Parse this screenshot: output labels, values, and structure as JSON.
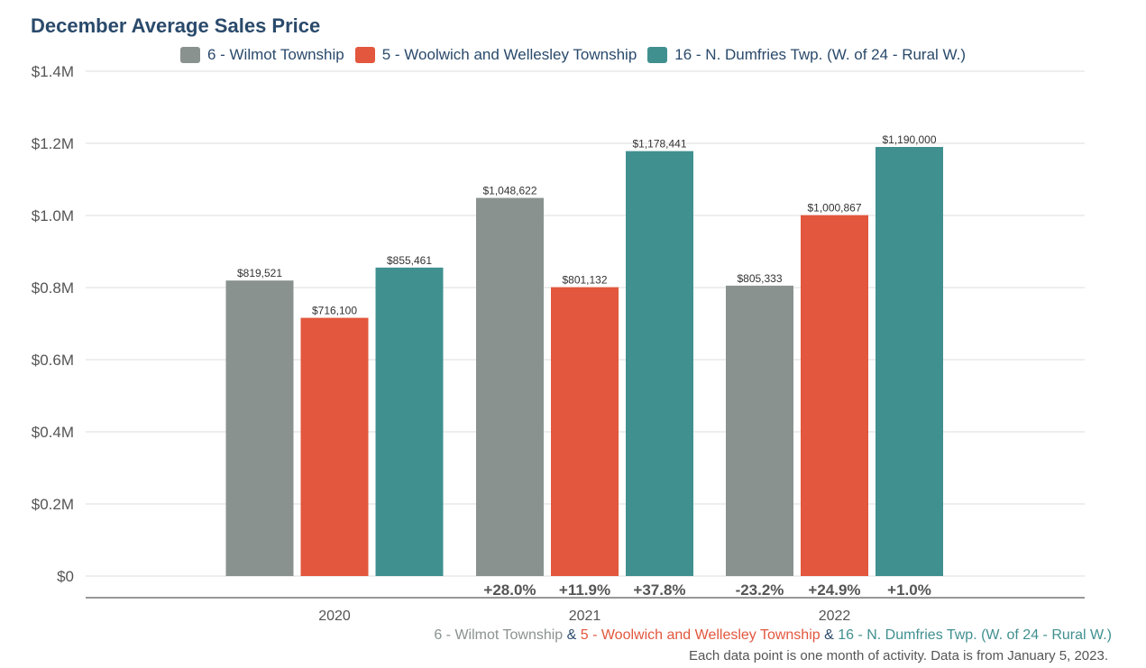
{
  "colors": {
    "series_1": "#8a9290",
    "series_2": "#e2573d",
    "series_3": "#419090",
    "title": "#2a4a6b",
    "connector": "#2a4a6b"
  },
  "chart_data": {
    "type": "bar",
    "title": "December Average Sales Price",
    "categories": [
      "2020",
      "2021",
      "2022"
    ],
    "series": [
      {
        "name": "6 - Wilmot Township",
        "values": [
          819521,
          1048622,
          805333
        ],
        "labels": [
          "$819,521",
          "$1,048,622",
          "$805,333"
        ],
        "changes": [
          null,
          "+28.0%",
          "-23.2%"
        ]
      },
      {
        "name": "5 - Woolwich and Wellesley Township",
        "values": [
          716100,
          801132,
          1000867
        ],
        "labels": [
          "$716,100",
          "$801,132",
          "$1,000,867"
        ],
        "changes": [
          null,
          "+11.9%",
          "+24.9%"
        ]
      },
      {
        "name": "16 - N. Dumfries Twp. (W. of 24 - Rural W.)",
        "values": [
          855461,
          1178441,
          1190000
        ],
        "labels": [
          "$855,461",
          "$1,178,441",
          "$1,190,000"
        ],
        "changes": [
          null,
          "+37.8%",
          "+1.0%"
        ]
      }
    ],
    "ylim": [
      0,
      1400000
    ],
    "yticks": [
      {
        "value": 0,
        "label": "$0"
      },
      {
        "value": 200000,
        "label": "$0.2M"
      },
      {
        "value": 400000,
        "label": "$0.4M"
      },
      {
        "value": 600000,
        "label": "$0.6M"
      },
      {
        "value": 800000,
        "label": "$0.8M"
      },
      {
        "value": 1000000,
        "label": "$1.0M"
      },
      {
        "value": 1200000,
        "label": "$1.2M"
      },
      {
        "value": 1400000,
        "label": "$1.4M"
      }
    ],
    "grid": true,
    "legend": "top"
  },
  "footer": {
    "series_line": [
      {
        "text": "6 - Wilmot Township",
        "color_key": "series_1"
      },
      {
        "text": " & ",
        "color_key": "connector"
      },
      {
        "text": "5 - Woolwich and Wellesley Township",
        "color_key": "series_2"
      },
      {
        "text": " & ",
        "color_key": "connector"
      },
      {
        "text": "16 - N. Dumfries Twp. (W. of 24 - Rural W.)",
        "color_key": "series_3"
      }
    ],
    "note": "Each data point is one month of activity. Data is from January 5, 2023."
  }
}
